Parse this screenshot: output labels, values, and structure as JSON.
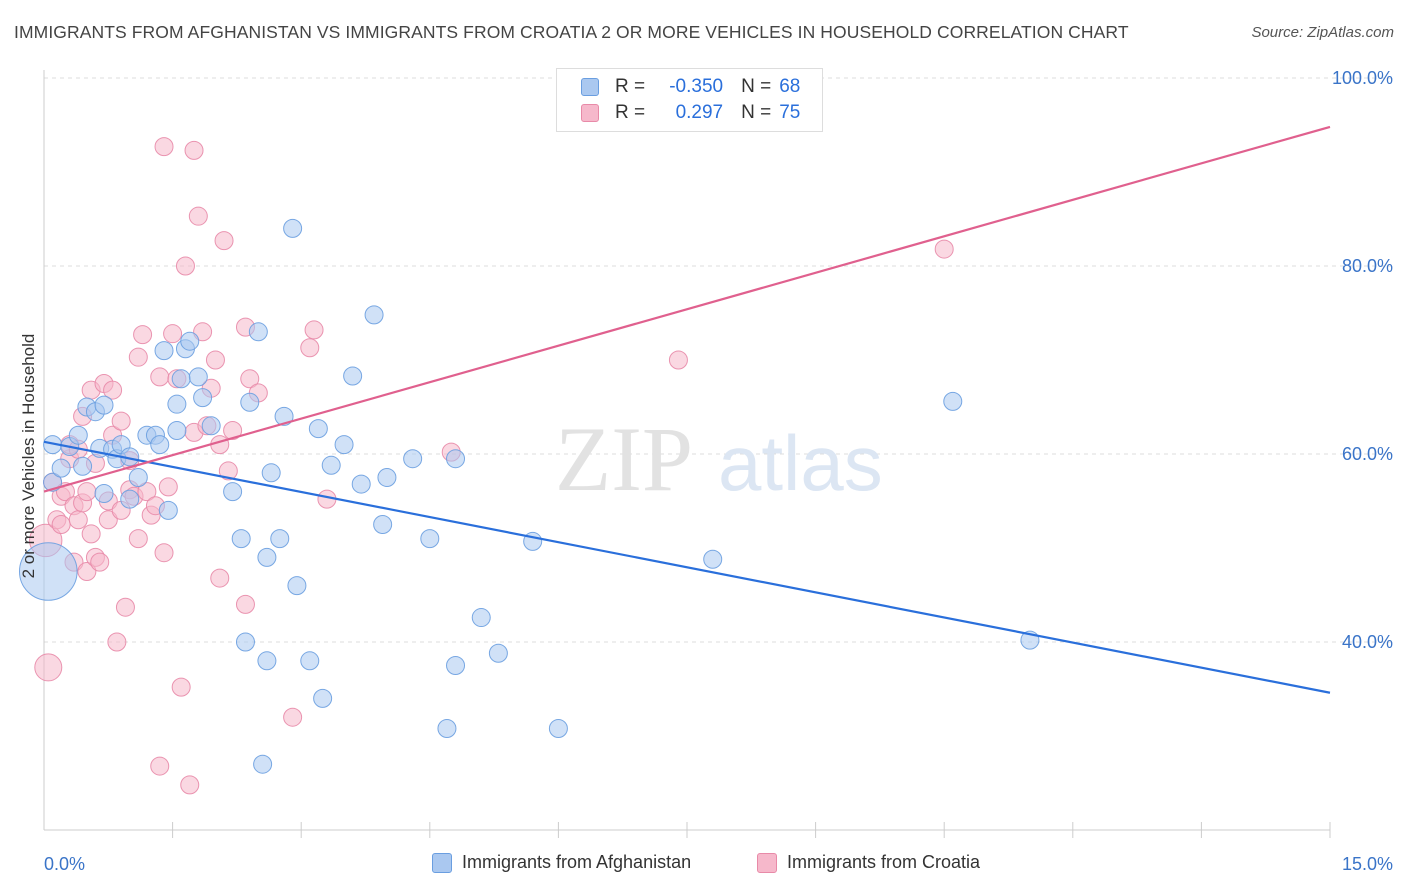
{
  "title": "IMMIGRANTS FROM AFGHANISTAN VS IMMIGRANTS FROM CROATIA 2 OR MORE VEHICLES IN HOUSEHOLD CORRELATION CHART",
  "source": "Source: ZipAtlas.com",
  "watermark": {
    "zip": "ZIP",
    "atlas": "atlas"
  },
  "legend_box": {
    "rows": [
      {
        "r_label": "R =",
        "r_value": "-0.350",
        "n_label": "N =",
        "n_value": "68"
      },
      {
        "r_label": "R =",
        "r_value": "0.297",
        "n_label": "N =",
        "n_value": "75"
      }
    ]
  },
  "legend_bottom": [
    "Immigrants from Afghanistan",
    "Immigrants from Croatia"
  ],
  "colors": {
    "afghanistan_fill": "#aac8f0",
    "afghanistan_stroke": "#6a9ee0",
    "afghanistan_line": "#2a6fdb",
    "croatia_fill": "#f6b8cb",
    "croatia_stroke": "#e88aa8",
    "croatia_line": "#e0608e",
    "axis_text": "#3a74c8",
    "grid": "#dddddd"
  },
  "chart_data": {
    "type": "scatter",
    "title": "IMMIGRANTS FROM AFGHANISTAN VS IMMIGRANTS FROM CROATIA 2 OR MORE VEHICLES IN HOUSEHOLD CORRELATION CHART",
    "xlabel": "",
    "ylabel": "2 or more Vehicles in Household",
    "xlim": [
      0,
      15
    ],
    "ylim": [
      20,
      100
    ],
    "x_tick_labels": [
      "0.0%",
      "15.0%"
    ],
    "y_ticks": [
      40,
      60,
      80,
      100
    ],
    "y_tick_labels": [
      "40.0%",
      "60.0%",
      "80.0%",
      "100.0%"
    ],
    "grid": true,
    "legend_placement": "top-center",
    "series": [
      {
        "name": "Immigrants from Afghanistan",
        "r": -0.35,
        "n": 68,
        "trend": {
          "x": [
            0,
            15
          ],
          "y": [
            61.3,
            34.6
          ]
        },
        "points": [
          [
            0.05,
            47.5,
            3.2
          ],
          [
            0.1,
            57.0,
            1
          ],
          [
            0.1,
            61.0,
            1
          ],
          [
            0.2,
            58.5,
            1
          ],
          [
            0.3,
            60.8,
            1
          ],
          [
            0.4,
            62.0,
            1
          ],
          [
            0.45,
            58.7,
            1
          ],
          [
            0.5,
            65.0,
            1
          ],
          [
            0.6,
            64.5,
            1
          ],
          [
            0.65,
            60.6,
            1
          ],
          [
            0.7,
            55.8,
            1
          ],
          [
            0.7,
            65.2,
            1
          ],
          [
            0.8,
            60.5,
            1
          ],
          [
            0.85,
            59.5,
            1
          ],
          [
            0.9,
            61.0,
            1
          ],
          [
            1.0,
            59.7,
            1
          ],
          [
            1.0,
            55.2,
            1
          ],
          [
            1.1,
            57.5,
            1
          ],
          [
            1.2,
            62.0,
            1
          ],
          [
            1.3,
            62.0,
            1
          ],
          [
            1.35,
            61.0,
            1
          ],
          [
            1.4,
            71.0,
            1
          ],
          [
            1.45,
            54.0,
            1
          ],
          [
            1.55,
            62.5,
            1
          ],
          [
            1.55,
            65.3,
            1
          ],
          [
            1.6,
            68.0,
            1
          ],
          [
            1.65,
            71.2,
            1
          ],
          [
            1.7,
            72.0,
            1
          ],
          [
            1.8,
            68.2,
            1
          ],
          [
            1.85,
            66.0,
            1
          ],
          [
            1.95,
            63.0,
            1
          ],
          [
            2.2,
            56.0,
            1
          ],
          [
            2.3,
            51.0,
            1
          ],
          [
            2.35,
            40.0,
            1
          ],
          [
            2.4,
            65.5,
            1
          ],
          [
            2.5,
            73.0,
            1
          ],
          [
            2.55,
            27.0,
            1
          ],
          [
            2.6,
            38.0,
            1
          ],
          [
            2.65,
            58.0,
            1
          ],
          [
            2.6,
            49.0,
            1
          ],
          [
            2.75,
            51.0,
            1
          ],
          [
            2.8,
            64.0,
            1
          ],
          [
            2.9,
            84.0,
            1
          ],
          [
            2.95,
            46.0,
            1
          ],
          [
            3.1,
            38.0,
            1
          ],
          [
            3.2,
            62.7,
            1
          ],
          [
            3.25,
            34.0,
            1
          ],
          [
            3.35,
            58.8,
            1
          ],
          [
            3.5,
            61.0,
            1
          ],
          [
            3.6,
            68.3,
            1
          ],
          [
            3.7,
            56.8,
            1
          ],
          [
            3.85,
            74.8,
            1
          ],
          [
            3.95,
            52.5,
            1
          ],
          [
            4.0,
            57.5,
            1
          ],
          [
            4.3,
            59.5,
            1
          ],
          [
            4.5,
            51.0,
            1
          ],
          [
            4.7,
            30.8,
            1
          ],
          [
            4.8,
            37.5,
            1
          ],
          [
            4.8,
            59.5,
            1
          ],
          [
            5.1,
            42.6,
            1
          ],
          [
            5.3,
            38.8,
            1
          ],
          [
            5.7,
            50.7,
            1
          ],
          [
            6.0,
            30.8,
            1
          ],
          [
            7.8,
            48.8,
            1
          ],
          [
            10.6,
            65.6,
            1
          ],
          [
            11.5,
            40.2,
            1
          ]
        ]
      },
      {
        "name": "Immigrants from Croatia",
        "r": 0.297,
        "n": 75,
        "trend": {
          "x": [
            0,
            15
          ],
          "y": [
            56.0,
            94.8
          ]
        },
        "points": [
          [
            0.02,
            50.8,
            1.8
          ],
          [
            0.05,
            37.3,
            1.5
          ],
          [
            0.1,
            57.0,
            1
          ],
          [
            0.15,
            53.0,
            1
          ],
          [
            0.2,
            52.5,
            1
          ],
          [
            0.2,
            55.5,
            1
          ],
          [
            0.25,
            56.0,
            1
          ],
          [
            0.3,
            59.5,
            1
          ],
          [
            0.3,
            61.0,
            1
          ],
          [
            0.35,
            54.5,
            1
          ],
          [
            0.35,
            48.5,
            1
          ],
          [
            0.4,
            53.0,
            1
          ],
          [
            0.4,
            60.5,
            1
          ],
          [
            0.45,
            54.8,
            1
          ],
          [
            0.45,
            64.0,
            1
          ],
          [
            0.5,
            47.5,
            1
          ],
          [
            0.5,
            56.0,
            1
          ],
          [
            0.55,
            66.8,
            1
          ],
          [
            0.55,
            51.5,
            1
          ],
          [
            0.6,
            59.0,
            1
          ],
          [
            0.6,
            49.0,
            1
          ],
          [
            0.65,
            48.5,
            1
          ],
          [
            0.7,
            67.5,
            1
          ],
          [
            0.75,
            53.0,
            1
          ],
          [
            0.75,
            55.0,
            1
          ],
          [
            0.8,
            66.8,
            1
          ],
          [
            0.8,
            62.0,
            1
          ],
          [
            0.85,
            40.0,
            1
          ],
          [
            0.9,
            54.0,
            1
          ],
          [
            0.9,
            63.5,
            1
          ],
          [
            0.95,
            43.7,
            1
          ],
          [
            1.0,
            59.3,
            1
          ],
          [
            1.0,
            56.2,
            1
          ],
          [
            1.05,
            55.5,
            1
          ],
          [
            1.1,
            70.3,
            1
          ],
          [
            1.1,
            51.0,
            1
          ],
          [
            1.15,
            72.7,
            1
          ],
          [
            1.2,
            56.0,
            1
          ],
          [
            1.25,
            53.5,
            1
          ],
          [
            1.3,
            54.5,
            1
          ],
          [
            1.35,
            26.8,
            1
          ],
          [
            1.35,
            68.2,
            1
          ],
          [
            1.4,
            49.5,
            1
          ],
          [
            1.4,
            92.7,
            1
          ],
          [
            1.45,
            56.5,
            1
          ],
          [
            1.5,
            72.8,
            1
          ],
          [
            1.55,
            68.0,
            1
          ],
          [
            1.6,
            35.2,
            1
          ],
          [
            1.65,
            80.0,
            1
          ],
          [
            1.7,
            24.8,
            1
          ],
          [
            1.75,
            62.3,
            1
          ],
          [
            1.75,
            92.3,
            1
          ],
          [
            1.8,
            85.3,
            1
          ],
          [
            1.85,
            73.0,
            1
          ],
          [
            1.9,
            63.0,
            1
          ],
          [
            1.95,
            67.0,
            1
          ],
          [
            2.0,
            70.0,
            1
          ],
          [
            2.05,
            61.0,
            1
          ],
          [
            2.05,
            46.8,
            1
          ],
          [
            2.1,
            82.7,
            1
          ],
          [
            2.15,
            58.2,
            1
          ],
          [
            2.2,
            62.5,
            1
          ],
          [
            2.35,
            73.5,
            1
          ],
          [
            2.35,
            44.0,
            1
          ],
          [
            2.4,
            68.0,
            1
          ],
          [
            2.5,
            66.5,
            1
          ],
          [
            2.9,
            32.0,
            1
          ],
          [
            3.1,
            71.3,
            1
          ],
          [
            3.15,
            73.2,
            1
          ],
          [
            3.3,
            55.2,
            1
          ],
          [
            4.75,
            60.2,
            1
          ],
          [
            7.4,
            70.0,
            1
          ],
          [
            10.5,
            81.8,
            1
          ]
        ]
      }
    ]
  }
}
